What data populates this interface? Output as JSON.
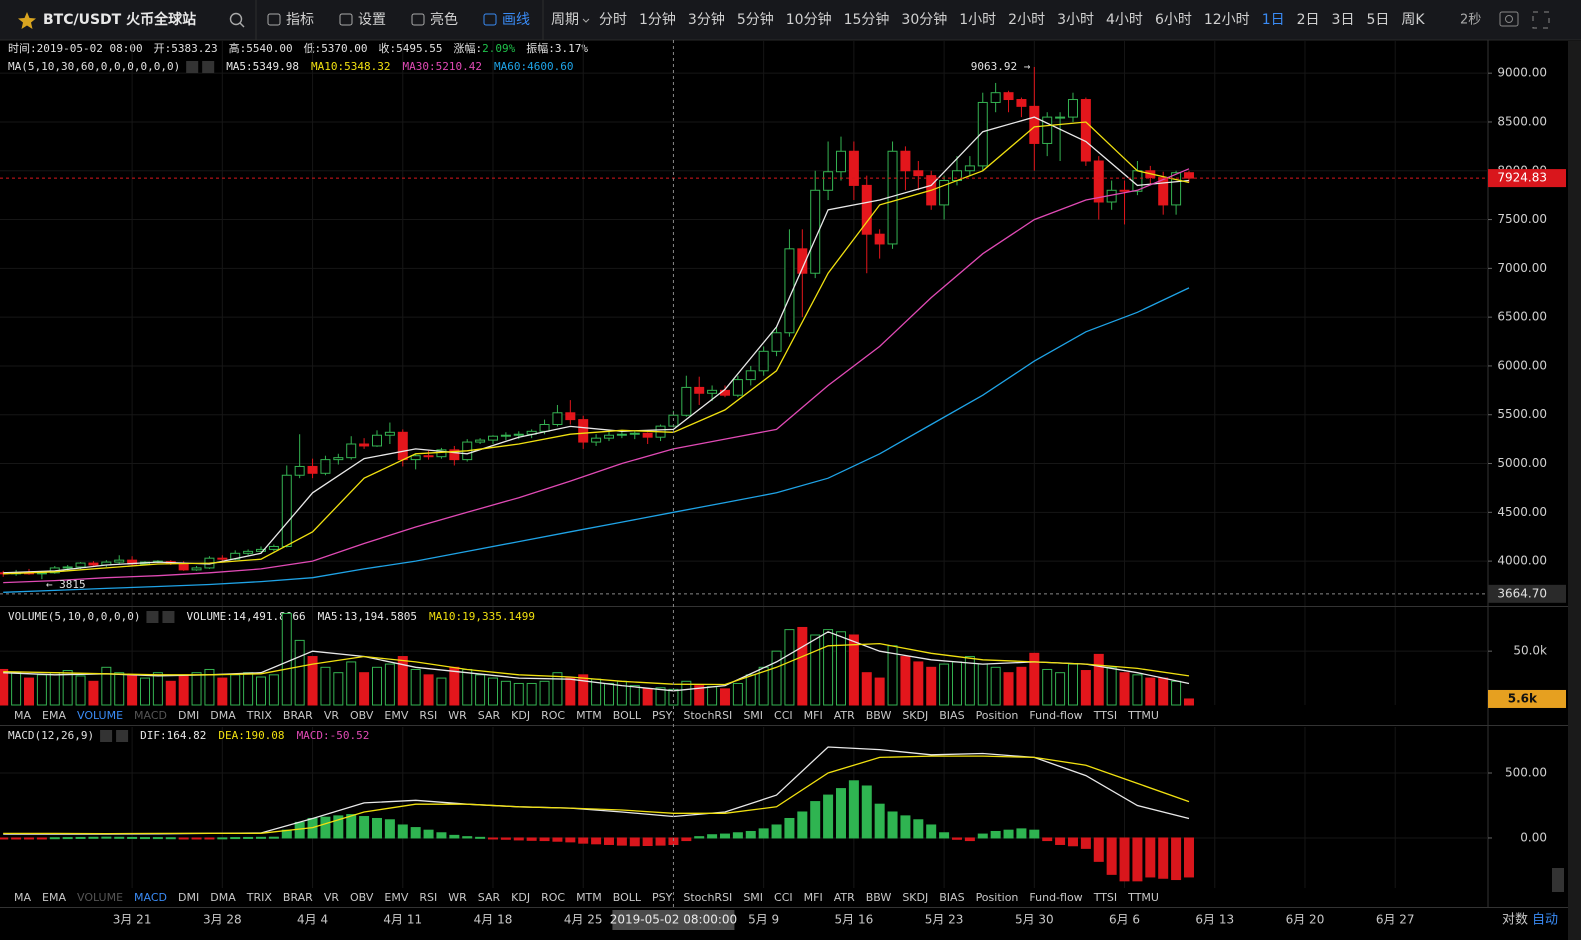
{
  "toolbar": {
    "symbol": "BTC/USDT 火币全球站",
    "tools": [
      "指标",
      "设置",
      "亮色",
      "画线"
    ],
    "active_tool": 3,
    "period_label": "周期",
    "periods": [
      "分时",
      "1分钟",
      "3分钟",
      "5分钟",
      "10分钟",
      "15分钟",
      "30分钟",
      "1小时",
      "2小时",
      "3小时",
      "4小时",
      "6小时",
      "12小时",
      "1日",
      "2日",
      "3日",
      "5日",
      "周K"
    ],
    "active_period": 13,
    "refresh": "2秒"
  },
  "info": [
    {
      "label": "时间:",
      "value": "2019-05-02 08:00"
    },
    {
      "label": "开:",
      "value": "5383.23"
    },
    {
      "label": "高:",
      "value": "5540.00"
    },
    {
      "label": "低:",
      "value": "5370.00"
    },
    {
      "label": "收:",
      "value": "5495.55"
    },
    {
      "label": "涨幅:",
      "value": "2.09%",
      "color": "#1fc24a"
    },
    {
      "label": "振幅:",
      "value": "3.17%"
    }
  ],
  "indicator_tabs": [
    "MA",
    "EMA",
    "VOLUME",
    "MACD",
    "DMI",
    "DMA",
    "TRIX",
    "BRAR",
    "VR",
    "OBV",
    "EMV",
    "RSI",
    "WR",
    "SAR",
    "KDJ",
    "ROC",
    "MTM",
    "BOLL",
    "PSY",
    "StochRSI",
    "SMI",
    "CCI",
    "MFI",
    "ATR",
    "BBW",
    "SKDJ",
    "BIAS",
    "Position",
    "Fund-flow",
    "TTSI",
    "TTMU"
  ],
  "tab_rows": [
    {
      "active": 2,
      "dim": 3
    },
    {
      "active": 3,
      "dim": 2
    }
  ],
  "footer": {
    "log": "对数",
    "auto": "自动"
  },
  "chart_data": [
    {
      "type": "candlestick",
      "title": "MA(5,10,30,60,0,0,0,0,0,0)",
      "up_color": "#35b352",
      "down_color": "#e3161c",
      "xlim": [
        -0.25,
        115.2
      ],
      "ylim": [
        3540,
        9340
      ],
      "yticks": [
        {
          "value": 4000,
          "label": "4000.00"
        },
        {
          "value": 4500,
          "label": "4500.00"
        },
        {
          "value": 5000,
          "label": "5000.00"
        },
        {
          "value": 5500,
          "label": "5500.00"
        },
        {
          "value": 6000,
          "label": "6000.00"
        },
        {
          "value": 6500,
          "label": "6500.00"
        },
        {
          "value": 7000,
          "label": "7000.00"
        },
        {
          "value": 7500,
          "label": "7500.00"
        },
        {
          "value": 8000,
          "label": "8000.00"
        },
        {
          "value": 8500,
          "label": "8500.00"
        },
        {
          "value": 9000,
          "label": "9000.00"
        }
      ],
      "xticks": [
        {
          "value": 10,
          "label": "3月 21"
        },
        {
          "value": 17,
          "label": "3月 28"
        },
        {
          "value": 24,
          "label": "4月 4"
        },
        {
          "value": 31,
          "label": "4月 11"
        },
        {
          "value": 38,
          "label": "4月 18"
        },
        {
          "value": 45,
          "label": "4月 25"
        },
        {
          "value": 59,
          "label": "5月 9"
        },
        {
          "value": 66,
          "label": "5月 16"
        },
        {
          "value": 73,
          "label": "5月 23"
        },
        {
          "value": 80,
          "label": "5月 30"
        },
        {
          "value": 87,
          "label": "6月 6"
        },
        {
          "value": 94,
          "label": "6月 13"
        },
        {
          "value": 101,
          "label": "6月 20"
        },
        {
          "value": 108,
          "label": "6月 27"
        }
      ],
      "crosshair": {
        "value": 52,
        "label": "2019-05-02 08:00:00"
      },
      "last_price": {
        "value": 7924.83,
        "label": "7924.83",
        "color": "#d9161c"
      },
      "low_line": {
        "value": 3664.7,
        "label": "3664.70"
      },
      "annotations": [
        {
          "x": 80,
          "value": 9063.92,
          "label": "9063.92 →",
          "side": "left"
        },
        {
          "x": 3,
          "value": 3815,
          "label": "← 3815",
          "side": "right"
        }
      ],
      "ohlc": [
        [
          3880,
          3900,
          3840,
          3870
        ],
        [
          3870,
          3910,
          3850,
          3880
        ],
        [
          3880,
          3920,
          3860,
          3870
        ],
        [
          3870,
          3900,
          3815,
          3880
        ],
        [
          3880,
          3950,
          3870,
          3930
        ],
        [
          3930,
          3960,
          3900,
          3940
        ],
        [
          3940,
          3990,
          3920,
          3980
        ],
        [
          3980,
          4000,
          3950,
          3960
        ],
        [
          3960,
          4010,
          3940,
          3990
        ],
        [
          3990,
          4060,
          3970,
          4010
        ],
        [
          4010,
          4050,
          3950,
          3970
        ],
        [
          3970,
          4000,
          3960,
          3990
        ],
        [
          3990,
          4010,
          3980,
          4000
        ],
        [
          3995,
          4010,
          3960,
          3980
        ],
        [
          3980,
          4000,
          3900,
          3910
        ],
        [
          3910,
          3950,
          3900,
          3930
        ],
        [
          3930,
          4050,
          3920,
          4030
        ],
        [
          4030,
          4060,
          4000,
          4020
        ],
        [
          4020,
          4110,
          4010,
          4080
        ],
        [
          4080,
          4120,
          4060,
          4100
        ],
        [
          4100,
          4150,
          4090,
          4120
        ],
        [
          4120,
          4170,
          4100,
          4150
        ],
        [
          4150,
          4980,
          4140,
          4880
        ],
        [
          4880,
          5300,
          4850,
          4970
        ],
        [
          4970,
          5050,
          4850,
          4900
        ],
        [
          4900,
          5080,
          4880,
          5040
        ],
        [
          5040,
          5100,
          4990,
          5060
        ],
        [
          5060,
          5280,
          5040,
          5200
        ],
        [
          5200,
          5260,
          5150,
          5180
        ],
        [
          5180,
          5340,
          5170,
          5290
        ],
        [
          5290,
          5420,
          5200,
          5320
        ],
        [
          5320,
          5350,
          4970,
          5040
        ],
        [
          5040,
          5100,
          4940,
          5080
        ],
        [
          5080,
          5130,
          5040,
          5070
        ],
        [
          5070,
          5160,
          5050,
          5140
        ],
        [
          5140,
          5180,
          4980,
          5040
        ],
        [
          5040,
          5250,
          5020,
          5220
        ],
        [
          5220,
          5260,
          5200,
          5240
        ],
        [
          5240,
          5290,
          5200,
          5280
        ],
        [
          5280,
          5320,
          5240,
          5290
        ],
        [
          5290,
          5330,
          5250,
          5300
        ],
        [
          5300,
          5350,
          5260,
          5330
        ],
        [
          5330,
          5450,
          5300,
          5400
        ],
        [
          5400,
          5600,
          5380,
          5520
        ],
        [
          5520,
          5650,
          5400,
          5450
        ],
        [
          5450,
          5490,
          5150,
          5220
        ],
        [
          5220,
          5300,
          5180,
          5260
        ],
        [
          5260,
          5330,
          5230,
          5290
        ],
        [
          5290,
          5330,
          5260,
          5300
        ],
        [
          5300,
          5340,
          5250,
          5310
        ],
        [
          5310,
          5320,
          5200,
          5270
        ],
        [
          5270,
          5400,
          5230,
          5383.23
        ],
        [
          5383.23,
          5540,
          5370,
          5495.55
        ],
        [
          5495,
          5900,
          5480,
          5780
        ],
        [
          5780,
          5890,
          5600,
          5720
        ],
        [
          5720,
          5800,
          5640,
          5750
        ],
        [
          5750,
          5800,
          5680,
          5700
        ],
        [
          5700,
          5900,
          5680,
          5860
        ],
        [
          5860,
          6000,
          5800,
          5950
        ],
        [
          5950,
          6200,
          5900,
          6150
        ],
        [
          6150,
          6400,
          6100,
          6340
        ],
        [
          6340,
          7400,
          6300,
          7200
        ],
        [
          7200,
          7400,
          6500,
          6950
        ],
        [
          6950,
          8000,
          6900,
          7800
        ],
        [
          7800,
          8300,
          7700,
          7990
        ],
        [
          7990,
          8350,
          7900,
          8200
        ],
        [
          8200,
          8300,
          7700,
          7850
        ],
        [
          7850,
          7950,
          6950,
          7350
        ],
        [
          7350,
          7400,
          7100,
          7250
        ],
        [
          7250,
          8300,
          7200,
          8200
        ],
        [
          8200,
          8250,
          7800,
          8000
        ],
        [
          8000,
          8100,
          7800,
          7950
        ],
        [
          7950,
          8000,
          7600,
          7650
        ],
        [
          7650,
          7950,
          7500,
          7900
        ],
        [
          7900,
          8150,
          7850,
          8000
        ],
        [
          8000,
          8150,
          7950,
          8050
        ],
        [
          8050,
          8800,
          8000,
          8700
        ],
        [
          8700,
          8900,
          8600,
          8800
        ],
        [
          8800,
          8820,
          8600,
          8730
        ],
        [
          8730,
          8750,
          8550,
          8660
        ],
        [
          8660,
          9063.92,
          8000,
          8280
        ],
        [
          8280,
          8600,
          8150,
          8550
        ],
        [
          8550,
          8600,
          8100,
          8550
        ],
        [
          8550,
          8800,
          8500,
          8730
        ],
        [
          8730,
          8750,
          8050,
          8100
        ],
        [
          8100,
          8150,
          7500,
          7680
        ],
        [
          7680,
          7900,
          7600,
          7800
        ],
        [
          7800,
          7900,
          7450,
          7790
        ],
        [
          7790,
          8100,
          7750,
          8000
        ],
        [
          8000,
          8050,
          7850,
          7930
        ],
        [
          7930,
          7990,
          7550,
          7650
        ],
        [
          7650,
          8000,
          7550,
          7980
        ],
        [
          7980,
          8000,
          7880,
          7924.83
        ]
      ],
      "line_x": [
        0,
        4,
        8,
        12,
        16,
        20,
        24,
        28,
        32,
        36,
        40,
        44,
        48,
        52,
        56,
        60,
        64,
        68,
        72,
        76,
        80,
        84,
        88,
        92
      ],
      "series": [
        {
          "name": "MA5:5349.98",
          "color": "#e8e8e8",
          "values": [
            3880,
            3900,
            3960,
            3990,
            3970,
            4080,
            4700,
            5050,
            5150,
            5100,
            5270,
            5380,
            5330,
            5350,
            5760,
            6400,
            7600,
            7700,
            7850,
            8400,
            8550,
            8300,
            7850,
            7900
          ]
        },
        {
          "name": "MA10:5348.32",
          "color": "#f0e010",
          "values": [
            3870,
            3890,
            3930,
            3970,
            3980,
            4020,
            4300,
            4850,
            5100,
            5130,
            5200,
            5300,
            5340,
            5320,
            5550,
            5950,
            6950,
            7650,
            7800,
            8000,
            8450,
            8500,
            8000,
            7880
          ]
        },
        {
          "name": "MA30:5210.42",
          "color": "#e04ab5",
          "values": [
            3780,
            3800,
            3830,
            3850,
            3880,
            3920,
            4000,
            4180,
            4350,
            4500,
            4650,
            4820,
            5000,
            5150,
            5250,
            5350,
            5800,
            6200,
            6700,
            7150,
            7500,
            7700,
            7800,
            8020
          ]
        },
        {
          "name": "MA60:4600.60",
          "color": "#1fa3e6",
          "values": [
            3680,
            3700,
            3720,
            3740,
            3760,
            3790,
            3830,
            3920,
            4000,
            4100,
            4200,
            4300,
            4400,
            4500,
            4600,
            4700,
            4850,
            5100,
            5400,
            5700,
            6050,
            6350,
            6550,
            6800
          ]
        }
      ]
    },
    {
      "type": "volume",
      "title": "VOLUME(5,10,0,0,0,0)",
      "name": "VOLUME:14,491.8066",
      "color": "#e8e8e8",
      "ylim": [
        0,
        91
      ],
      "yticks": [
        {
          "value": 50,
          "label": "50.0k"
        }
      ],
      "last_value": {
        "value": 5.6,
        "label": "5.6k",
        "color": "#e6a020"
      },
      "values": [
        33,
        30,
        25,
        28,
        30,
        32,
        27,
        22,
        35,
        30,
        28,
        25,
        30,
        22,
        27,
        30,
        33,
        25,
        28,
        30,
        26,
        28,
        85,
        60,
        45,
        35,
        30,
        40,
        30,
        35,
        38,
        45,
        33,
        28,
        25,
        35,
        33,
        28,
        25,
        22,
        20,
        20,
        22,
        30,
        25,
        28,
        24,
        20,
        22,
        18,
        15,
        16,
        14.5,
        22,
        18,
        17,
        15,
        20,
        28,
        35,
        50,
        70,
        72,
        65,
        70,
        68,
        65,
        30,
        25,
        55,
        45,
        40,
        35,
        38,
        40,
        45,
        38,
        35,
        30,
        35,
        48,
        33,
        30,
        38,
        32,
        47,
        35,
        30,
        28,
        25,
        25,
        22,
        5.6
      ],
      "series": [
        {
          "name": "MA5:13,194.5805",
          "color": "#e8e8e8",
          "values": [
            30,
            28,
            29,
            27,
            28,
            30,
            50,
            45,
            35,
            30,
            25,
            24,
            18,
            13.2,
            18,
            40,
            68,
            50,
            42,
            38,
            40,
            38,
            30,
            20
          ]
        },
        {
          "name": "MA10:19,335.1499",
          "color": "#f0e010",
          "values": [
            31,
            30,
            29,
            28,
            28,
            29,
            38,
            45,
            40,
            33,
            28,
            26,
            22,
            19.3,
            19,
            35,
            55,
            57,
            48,
            42,
            40,
            38,
            34,
            27
          ]
        }
      ]
    },
    {
      "type": "macd",
      "title": "MACD(12,26,9)",
      "name": "MACD:-50.52",
      "color": "#e04ab5",
      "up_color": "#2fb451",
      "down_color": "#d9161c",
      "ylim": [
        -385,
        854
      ],
      "yticks": [
        {
          "value": 0,
          "label": "0.00"
        },
        {
          "value": 500,
          "label": "500.00"
        }
      ],
      "values": [
        -5,
        -4,
        -3,
        -2,
        2,
        3,
        4,
        5,
        6,
        5,
        4,
        3,
        3,
        2,
        -2,
        -3,
        -1,
        1,
        3,
        4,
        5,
        6,
        60,
        120,
        150,
        160,
        170,
        180,
        165,
        150,
        140,
        100,
        80,
        60,
        40,
        20,
        10,
        5,
        -5,
        -10,
        -15,
        -18,
        -20,
        -25,
        -30,
        -40,
        -45,
        -50,
        -55,
        -60,
        -58,
        -55,
        -50.52,
        -20,
        10,
        25,
        30,
        40,
        50,
        70,
        100,
        150,
        200,
        280,
        330,
        380,
        440,
        400,
        260,
        200,
        170,
        140,
        100,
        40,
        -10,
        -20,
        30,
        50,
        60,
        70,
        60,
        -20,
        -50,
        -60,
        -80,
        -180,
        -280,
        -330,
        -330,
        -300,
        -310,
        -320,
        -300
      ],
      "series": [
        {
          "name": "DIF:164.82",
          "color": "#e8e8e8",
          "values": [
            30,
            30,
            30,
            32,
            35,
            38,
            150,
            270,
            290,
            260,
            240,
            230,
            200,
            165,
            200,
            330,
            700,
            680,
            640,
            650,
            620,
            480,
            250,
            150
          ]
        },
        {
          "name": "DEA:190.08",
          "color": "#f0e010",
          "values": [
            35,
            35,
            34,
            35,
            36,
            36,
            80,
            200,
            260,
            260,
            240,
            230,
            215,
            190,
            190,
            240,
            500,
            620,
            630,
            630,
            620,
            560,
            420,
            280
          ]
        }
      ]
    }
  ]
}
